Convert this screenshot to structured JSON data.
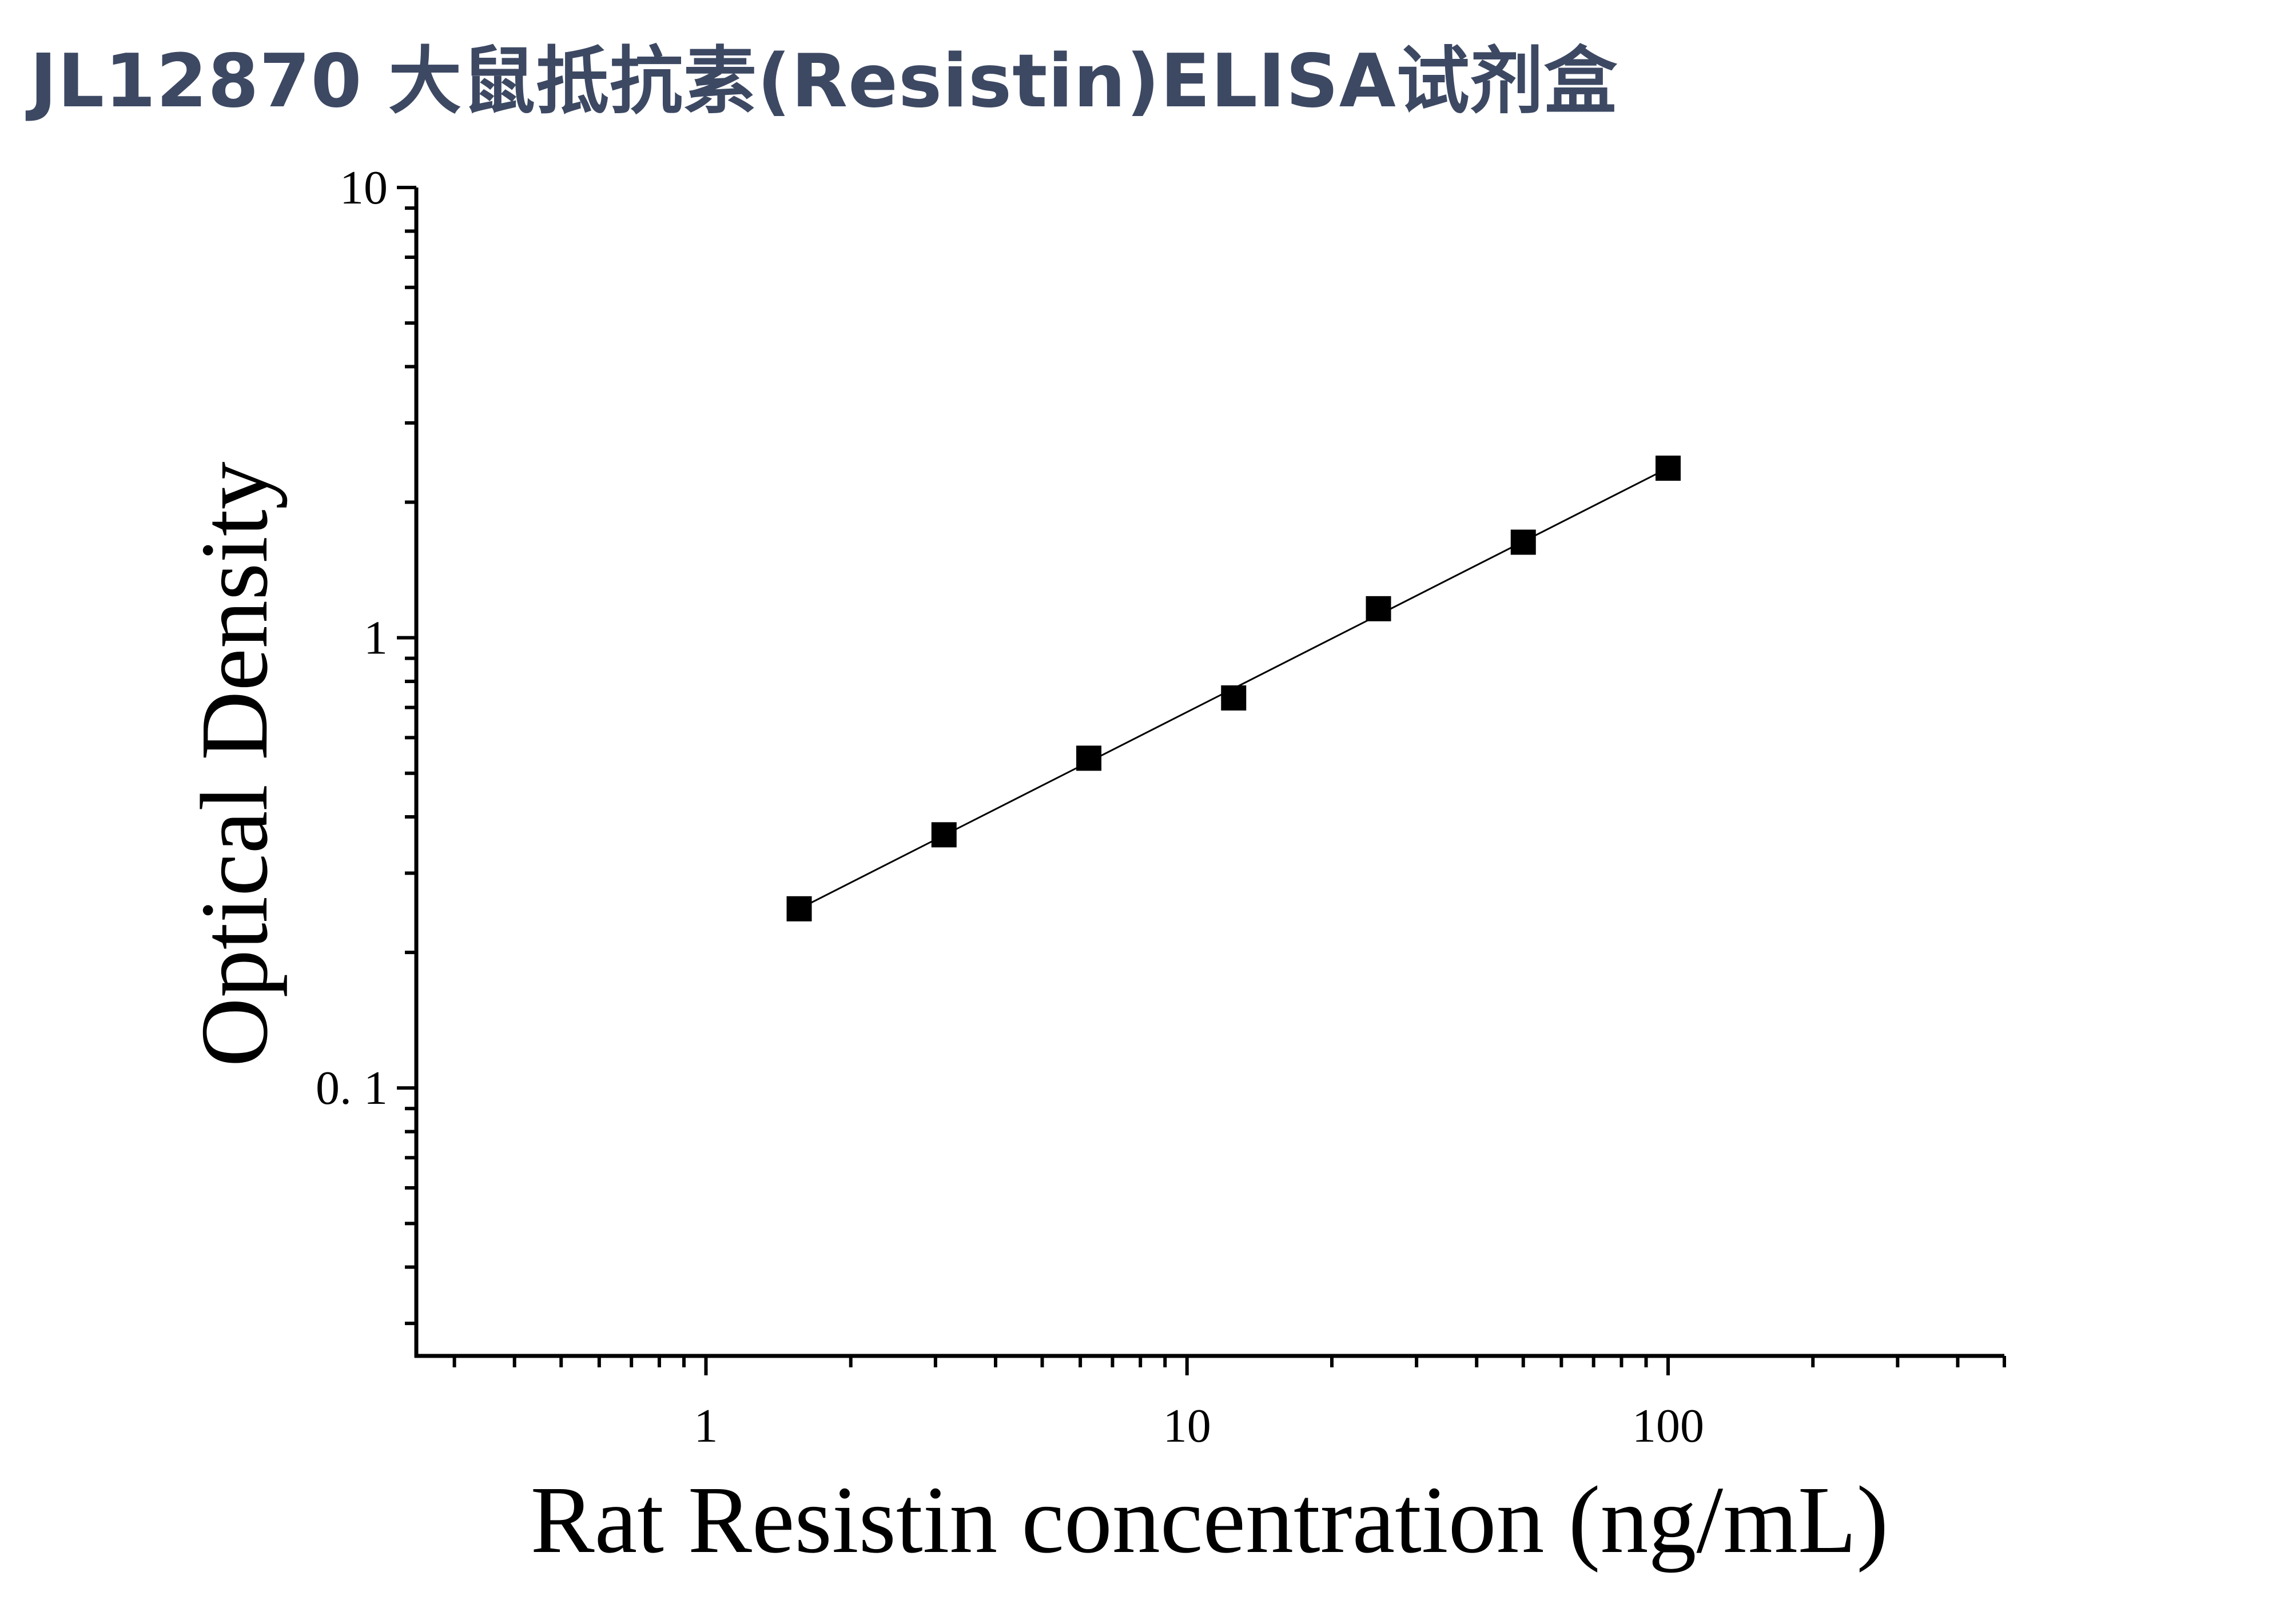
{
  "title": "JL12870 大鼠抵抗素(Resistin)ELISA试剂盒",
  "chart_data": {
    "type": "scatter",
    "xlabel": "Rat Resistin concentration (ng/mL)",
    "ylabel": "Optical Density",
    "x_scale": "log",
    "y_scale": "log",
    "xlim": [
      0.25,
      500
    ],
    "ylim": [
      0.0254,
      10
    ],
    "x_tick_labels": [
      {
        "value": 1,
        "label": "1"
      },
      {
        "value": 10,
        "label": "10"
      },
      {
        "value": 100,
        "label": "100"
      }
    ],
    "y_tick_labels": [
      {
        "value": 0.1,
        "label": "0. 1"
      },
      {
        "value": 1,
        "label": "1"
      },
      {
        "value": 10,
        "label": "10"
      }
    ],
    "series": [
      {
        "x": [
          1.5625,
          3.125,
          6.25,
          12.5,
          25,
          50,
          100
        ],
        "y": [
          0.25,
          0.365,
          0.54,
          0.735,
          1.16,
          1.63,
          2.38
        ],
        "marker": "square",
        "line": "fit",
        "color": "#000000"
      }
    ],
    "grid": false,
    "legend": "none"
  }
}
